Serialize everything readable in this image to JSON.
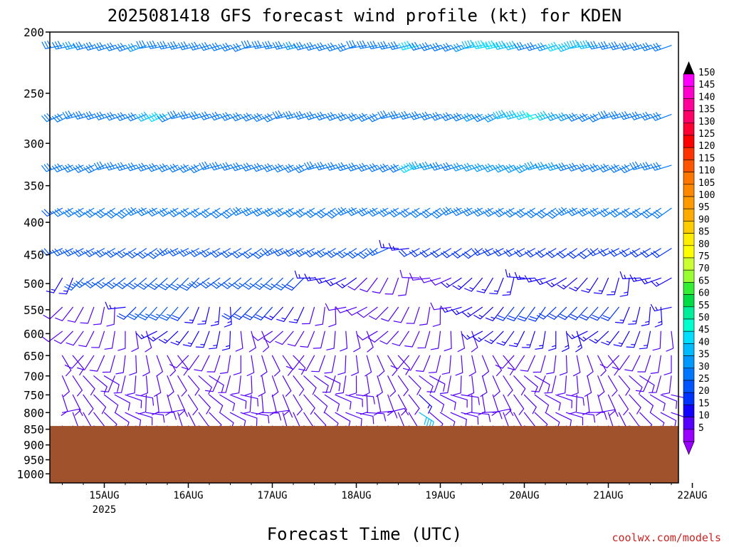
{
  "chart_data": {
    "type": "wind-barb-profile",
    "title": "2025081418 GFS forecast wind profile (kt) for KDEN",
    "xlabel": "Forecast Time (UTC)",
    "credit": "coolwx.com/models",
    "y_ticks": [
      "200",
      "250",
      "300",
      "350",
      "400",
      "450",
      "500",
      "550",
      "600",
      "650",
      "700",
      "750",
      "800",
      "850",
      "900",
      "950",
      "1000"
    ],
    "y_tick_values": [
      200,
      250,
      300,
      350,
      400,
      450,
      500,
      550,
      600,
      650,
      700,
      750,
      800,
      850,
      900,
      950,
      1000
    ],
    "ylim_hpa": [
      200,
      1050
    ],
    "x_tick_labels": [
      "15AUG",
      "16AUG",
      "17AUG",
      "18AUG",
      "19AUG",
      "20AUG",
      "21AUG",
      "22AUG"
    ],
    "x_tick_sublabel": "2025",
    "xlim_hours": [
      -6,
      180
    ],
    "surface_pressure_hpa": 840,
    "colorbar_ticks": [
      "150",
      "145",
      "140",
      "135",
      "130",
      "125",
      "120",
      "115",
      "110",
      "105",
      "100",
      "95",
      "90",
      "85",
      "80",
      "75",
      "70",
      "65",
      "60",
      "55",
      "50",
      "45",
      "40",
      "35",
      "30",
      "25",
      "20",
      "15",
      "10",
      "5"
    ],
    "colorbar_colors": [
      "#ff00ff",
      "#ff00cc",
      "#ff0099",
      "#ff0066",
      "#ff0033",
      "#ff0000",
      "#ff3300",
      "#ff5500",
      "#ff7700",
      "#ff8800",
      "#ff9900",
      "#ffaa00",
      "#ffcc00",
      "#ffee00",
      "#ffff00",
      "#ccff33",
      "#99ff33",
      "#33ee33",
      "#00dd44",
      "#00ee99",
      "#00ffcc",
      "#00ddff",
      "#00bbff",
      "#0099ff",
      "#0077ff",
      "#0055ff",
      "#0033ff",
      "#1100ff",
      "#5500ff",
      "#9900ff"
    ],
    "levels_hpa": [
      210,
      270,
      325,
      380,
      440,
      490,
      545,
      595,
      650,
      700,
      750,
      800,
      840
    ],
    "barb_rows": [
      {
        "hpa": 210,
        "dir_deg": 255,
        "speed_kt": [
          30,
          30,
          30,
          30,
          35,
          30,
          30,
          30,
          30,
          30,
          35,
          30,
          30,
          30,
          30,
          30,
          30,
          30,
          30,
          30,
          30,
          30,
          30,
          30,
          30,
          35,
          30,
          30,
          30,
          30,
          30,
          30,
          30,
          30,
          30,
          30,
          45,
          30,
          30,
          30,
          30,
          35,
          40,
          45,
          45,
          40,
          40,
          30,
          30,
          35,
          45,
          40,
          40,
          40,
          30,
          30,
          30,
          30,
          30,
          30,
          30,
          30
        ]
      },
      {
        "hpa": 270,
        "dir_deg": 250,
        "speed_kt": [
          30,
          30,
          30,
          30,
          30,
          30,
          30,
          30,
          30,
          30,
          30,
          40,
          45,
          30,
          30,
          30,
          30,
          30,
          30,
          30,
          30,
          30,
          30,
          30,
          30,
          30,
          30,
          30,
          30,
          30,
          30,
          30,
          30,
          30,
          30,
          30,
          30,
          30,
          30,
          30,
          30,
          30,
          35,
          30,
          35,
          40,
          40,
          45,
          50,
          40,
          35,
          35,
          30,
          30,
          30,
          30,
          30,
          30,
          30,
          30,
          30,
          30
        ]
      },
      {
        "hpa": 325,
        "dir_deg": 250,
        "speed_kt": [
          30,
          30,
          30,
          30,
          30,
          30,
          30,
          30,
          30,
          30,
          30,
          30,
          30,
          30,
          30,
          30,
          30,
          30,
          30,
          30,
          30,
          30,
          30,
          30,
          30,
          30,
          30,
          30,
          30,
          30,
          30,
          30,
          30,
          30,
          30,
          30,
          45,
          35,
          35,
          30,
          30,
          35,
          35,
          35,
          35,
          35,
          35,
          35,
          35,
          35,
          35,
          30,
          30,
          30,
          30,
          30,
          30,
          30,
          30,
          30,
          30,
          30
        ]
      },
      {
        "hpa": 380,
        "dir_deg": 240,
        "speed_kt": [
          15,
          30,
          25,
          30,
          30,
          30,
          30,
          30,
          30,
          30,
          30,
          30,
          30,
          30,
          30,
          30,
          30,
          30,
          30,
          30,
          30,
          30,
          30,
          30,
          30,
          30,
          30,
          30,
          30,
          30,
          30,
          30,
          30,
          30,
          30,
          30,
          30,
          30,
          30,
          30,
          30,
          30,
          30,
          30,
          30,
          30,
          30,
          30,
          30,
          30,
          30,
          30,
          30,
          30,
          30,
          30,
          30,
          30,
          30,
          30,
          30,
          30
        ]
      },
      {
        "hpa": 440,
        "dir_deg": 240,
        "speed_kt": [
          20,
          25,
          25,
          25,
          25,
          25,
          25,
          25,
          25,
          25,
          25,
          25,
          25,
          25,
          25,
          25,
          25,
          25,
          25,
          25,
          25,
          25,
          25,
          25,
          25,
          25,
          25,
          25,
          25,
          25,
          25,
          25,
          25,
          25,
          15,
          15,
          20,
          20,
          20,
          20,
          20,
          20,
          20,
          20,
          20,
          20,
          20,
          20,
          20,
          20,
          20,
          20,
          20,
          20,
          20,
          20,
          20,
          20,
          20,
          20,
          20,
          20
        ]
      },
      {
        "hpa": 490,
        "dir_deg": 230,
        "speed_kt": [
          10,
          10,
          15,
          15,
          25,
          25,
          25,
          25,
          25,
          25,
          25,
          25,
          25,
          25,
          25,
          25,
          25,
          25,
          25,
          25,
          25,
          25,
          25,
          25,
          25,
          20,
          15,
          15,
          15,
          15,
          15,
          10,
          10,
          10,
          10,
          10,
          10,
          10,
          10,
          10,
          15,
          15,
          15,
          15,
          15,
          15,
          15,
          15,
          15,
          15,
          15,
          15,
          15,
          15,
          15,
          15,
          15,
          15,
          15,
          15,
          15,
          15
        ]
      },
      {
        "hpa": 545,
        "dir_deg": 220,
        "speed_kt": [
          10,
          10,
          10,
          10,
          10,
          10,
          10,
          10,
          15,
          20,
          25,
          25,
          25,
          25,
          20,
          15,
          15,
          15,
          15,
          20,
          20,
          20,
          20,
          15,
          15,
          15,
          10,
          10,
          10,
          10,
          10,
          10,
          10,
          10,
          10,
          10,
          10,
          10,
          10,
          10,
          15,
          15,
          15,
          15,
          15,
          20,
          20,
          20,
          20,
          20,
          20,
          20,
          20,
          20,
          20,
          20,
          15,
          15,
          15,
          15,
          15,
          15
        ]
      },
      {
        "hpa": 595,
        "dir_deg": 200,
        "speed_kt": [
          10,
          10,
          10,
          10,
          10,
          10,
          10,
          10,
          10,
          10,
          10,
          15,
          15,
          15,
          15,
          15,
          15,
          15,
          15,
          10,
          10,
          10,
          10,
          10,
          10,
          10,
          10,
          10,
          10,
          10,
          10,
          10,
          10,
          10,
          10,
          10,
          10,
          10,
          10,
          10,
          10,
          10,
          15,
          15,
          15,
          15,
          15,
          15,
          15,
          15,
          15,
          15,
          15,
          15,
          15,
          15,
          15,
          15,
          15,
          10,
          10,
          10
        ]
      },
      {
        "hpa": 650,
        "dir_deg": 180,
        "speed_kt": [
          10,
          10,
          10,
          10,
          10,
          10,
          10,
          10,
          10,
          10,
          10,
          10,
          10,
          10,
          10,
          10,
          10,
          10,
          10,
          10,
          10,
          10,
          10,
          10,
          10,
          10,
          10,
          10,
          10,
          10,
          10,
          10,
          10,
          10,
          10,
          10,
          10,
          10,
          10,
          10,
          10,
          10,
          10,
          10,
          10,
          10,
          10,
          10,
          10,
          10,
          10,
          10,
          10,
          10,
          10,
          10,
          10,
          10,
          10,
          10,
          10,
          10
        ]
      },
      {
        "hpa": 700,
        "dir_deg": 160,
        "speed_kt": [
          10,
          10,
          10,
          10,
          10,
          10,
          10,
          10,
          10,
          10,
          10,
          10,
          10,
          10,
          10,
          10,
          10,
          10,
          10,
          10,
          10,
          10,
          10,
          10,
          10,
          10,
          10,
          10,
          10,
          10,
          10,
          10,
          10,
          10,
          10,
          10,
          10,
          10,
          10,
          10,
          10,
          10,
          10,
          10,
          10,
          10,
          10,
          10,
          10,
          10,
          10,
          10,
          10,
          10,
          10,
          10,
          10,
          10,
          10,
          10,
          10,
          10
        ]
      },
      {
        "hpa": 750,
        "dir_deg": 140,
        "speed_kt": [
          10,
          10,
          10,
          10,
          10,
          10,
          10,
          10,
          10,
          10,
          10,
          10,
          10,
          10,
          10,
          10,
          10,
          10,
          10,
          10,
          10,
          10,
          10,
          10,
          10,
          10,
          10,
          10,
          10,
          10,
          10,
          10,
          10,
          10,
          10,
          10,
          15,
          10,
          10,
          10,
          10,
          10,
          10,
          10,
          10,
          10,
          10,
          10,
          10,
          10,
          10,
          10,
          10,
          10,
          10,
          10,
          10,
          10,
          10,
          10,
          10,
          15
        ]
      },
      {
        "hpa": 800,
        "dir_deg": 120,
        "speed_kt": [
          10,
          10,
          10,
          10,
          10,
          10,
          10,
          10,
          10,
          10,
          10,
          10,
          10,
          10,
          10,
          10,
          10,
          10,
          10,
          10,
          10,
          10,
          10,
          10,
          10,
          10,
          10,
          10,
          10,
          10,
          10,
          10,
          10,
          10,
          10,
          10,
          40,
          10,
          10,
          10,
          10,
          10,
          10,
          10,
          10,
          10,
          10,
          10,
          10,
          10,
          10,
          10,
          10,
          10,
          10,
          10,
          10,
          10,
          10,
          10,
          10,
          20
        ]
      },
      {
        "hpa": 840,
        "dir_deg": 150,
        "speed_kt": [
          10,
          10,
          10,
          10,
          10,
          10,
          10,
          10,
          10,
          10,
          10,
          10,
          10,
          10,
          10,
          10,
          10,
          10,
          10,
          10,
          10,
          10,
          10,
          10,
          10,
          10,
          10,
          10,
          10,
          10,
          10,
          10,
          10,
          10,
          10,
          10,
          45,
          10,
          10,
          10,
          10,
          10,
          10,
          10,
          10,
          10,
          10,
          10,
          10,
          10,
          10,
          10,
          10,
          10,
          10,
          10,
          10,
          10,
          10,
          10,
          10,
          20
        ]
      }
    ]
  }
}
